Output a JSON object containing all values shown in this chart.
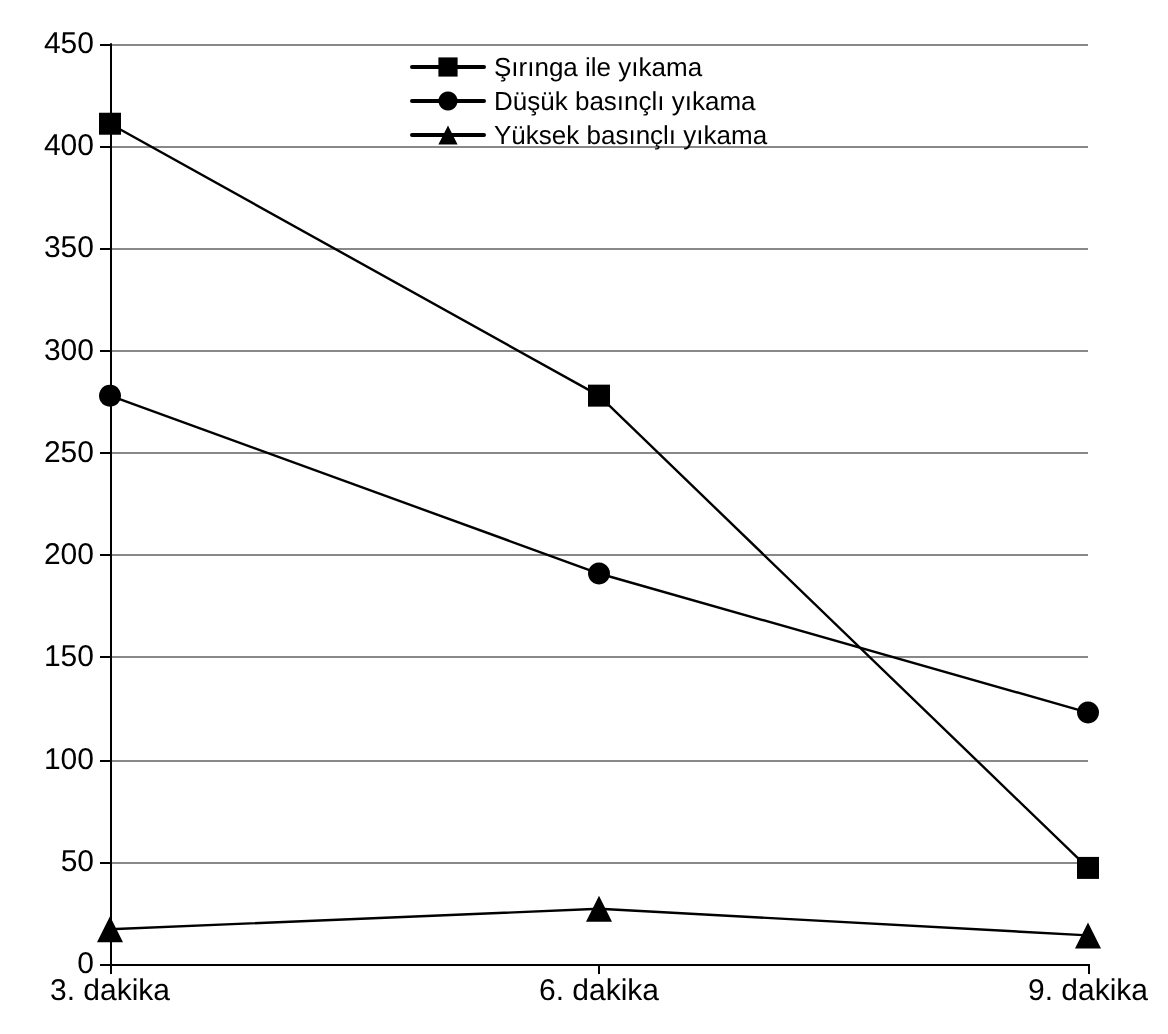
{
  "chart_data": {
    "type": "line",
    "categories": [
      "3. dakika",
      "6. dakika",
      "9. dakika"
    ],
    "series": [
      {
        "name": "Şırınga ile yıkama",
        "color": "#000000",
        "marker": "square",
        "values": [
          411,
          278,
          47
        ]
      },
      {
        "name": "Düşük basınçlı yıkama",
        "color": "#000000",
        "marker": "circle",
        "values": [
          278,
          191,
          123
        ]
      },
      {
        "name": "Yüksek basınçlı yıkama",
        "color": "#000000",
        "marker": "triangle",
        "values": [
          17,
          27,
          14
        ]
      }
    ],
    "ylim": [
      0,
      450
    ],
    "yticks": [
      0,
      50,
      100,
      150,
      200,
      250,
      300,
      350,
      400,
      450
    ],
    "grid": "y",
    "legend": "top",
    "line_style": "solid"
  }
}
